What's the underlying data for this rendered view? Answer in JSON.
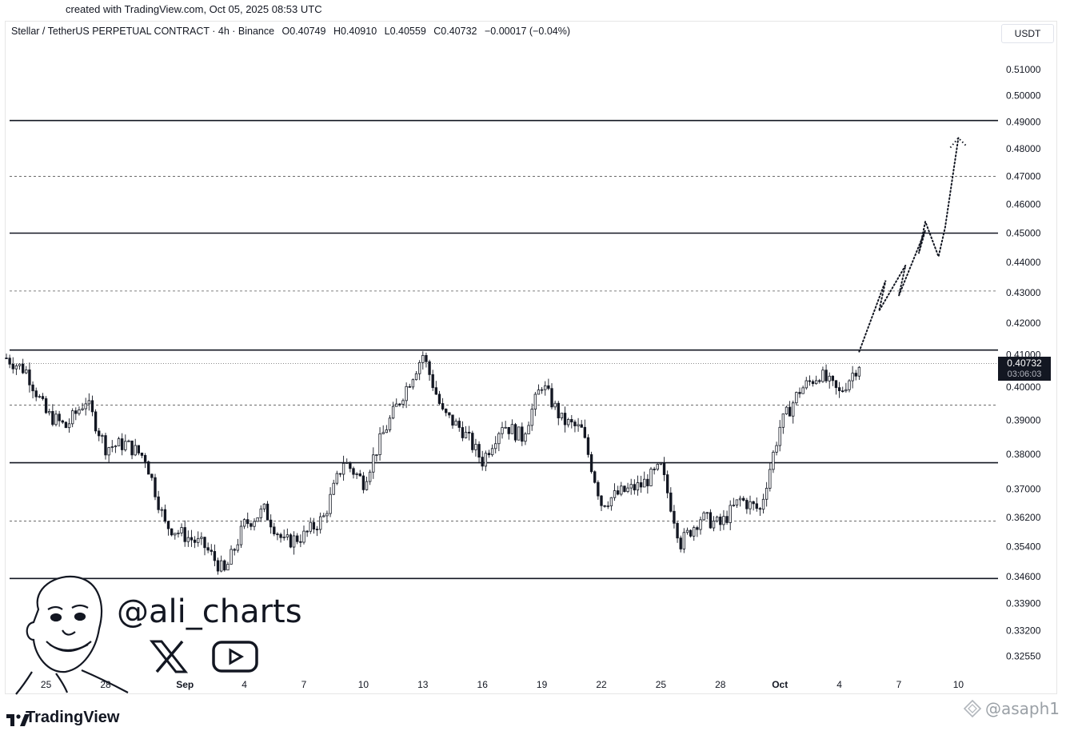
{
  "watermark_top": "created with TradingView.com, Oct 05, 2025 08:53 UTC",
  "header": {
    "symbol": "Stellar / TetherUS PERPETUAL CONTRACT · 4h · Binance",
    "open": "O0.40749",
    "high": "H0.40910",
    "low": "L0.40559",
    "close": "C0.40732",
    "change": "−0.00017 (−0.04%)",
    "unit": "USDT"
  },
  "last_price": {
    "value": "0.40732",
    "countdown": "03:06:03"
  },
  "branding": {
    "logo_text": "TradingView",
    "handle": "@ali_charts",
    "corner_watermark": "@asaph1"
  },
  "icons": [
    "x-logo-icon",
    "youtube-icon",
    "avatar-illustration",
    "tradingview-logo-icon"
  ],
  "colors": {
    "background": "#ffffff",
    "candle_up": "#ffffff",
    "candle_down": "#131722",
    "levels": "#131722"
  },
  "chart_data": {
    "type": "candlestick",
    "interval": "4h",
    "y_axis_ticks": [
      "0.51000",
      "0.50000",
      "0.49000",
      "0.48000",
      "0.47000",
      "0.46000",
      "0.45000",
      "0.44000",
      "0.43000",
      "0.42000",
      "0.41000",
      "0.40000",
      "0.39000",
      "0.38000",
      "0.37000",
      "0.36200",
      "0.35400",
      "0.34600",
      "0.33900",
      "0.33200",
      "0.32550"
    ],
    "y_scale": "log",
    "ylim": [
      0.3205,
      0.5185
    ],
    "x_axis_ticks": [
      {
        "label": "25",
        "date": "2025-08-25"
      },
      {
        "label": "28",
        "date": "2025-08-28"
      },
      {
        "label": "Sep",
        "date": "2025-09-01",
        "bold": true
      },
      {
        "label": "4",
        "date": "2025-09-04"
      },
      {
        "label": "7",
        "date": "2025-09-07"
      },
      {
        "label": "10",
        "date": "2025-09-10"
      },
      {
        "label": "13",
        "date": "2025-09-13"
      },
      {
        "label": "16",
        "date": "2025-09-16"
      },
      {
        "label": "19",
        "date": "2025-09-19"
      },
      {
        "label": "22",
        "date": "2025-09-22"
      },
      {
        "label": "25",
        "date": "2025-09-25"
      },
      {
        "label": "28",
        "date": "2025-09-28"
      },
      {
        "label": "Oct",
        "date": "2025-10-01",
        "bold": true
      },
      {
        "label": "4",
        "date": "2025-10-04"
      },
      {
        "label": "7",
        "date": "2025-10-07"
      },
      {
        "label": "10",
        "date": "2025-10-10"
      }
    ],
    "xlim": [
      "2025-08-23",
      "2025-10-12"
    ],
    "horizontal_levels": [
      {
        "price": 0.4905,
        "style": "solid"
      },
      {
        "price": 0.47,
        "style": "dashed"
      },
      {
        "price": 0.45,
        "style": "solid"
      },
      {
        "price": 0.4305,
        "style": "dashed"
      },
      {
        "price": 0.4115,
        "style": "solid"
      },
      {
        "price": 0.4073,
        "style": "dotted"
      },
      {
        "price": 0.3945,
        "style": "dashed"
      },
      {
        "price": 0.3775,
        "style": "solid"
      },
      {
        "price": 0.361,
        "style": "dashed"
      },
      {
        "price": 0.3455,
        "style": "solid"
      }
    ],
    "close_path": [
      [
        "2025-08-23",
        0.409
      ],
      [
        "2025-08-24",
        0.405
      ],
      [
        "2025-08-25",
        0.392
      ],
      [
        "2025-08-26",
        0.388
      ],
      [
        "2025-08-27",
        0.396
      ],
      [
        "2025-08-28",
        0.382
      ],
      [
        "2025-08-29",
        0.383
      ],
      [
        "2025-08-30",
        0.379
      ],
      [
        "2025-08-31",
        0.36
      ],
      [
        "2025-09-01",
        0.357
      ],
      [
        "2025-09-02",
        0.354
      ],
      [
        "2025-09-03",
        0.347
      ],
      [
        "2025-09-04",
        0.36
      ],
      [
        "2025-09-05",
        0.364
      ],
      [
        "2025-09-06",
        0.355
      ],
      [
        "2025-09-07",
        0.357
      ],
      [
        "2025-09-08",
        0.362
      ],
      [
        "2025-09-09",
        0.378
      ],
      [
        "2025-09-10",
        0.372
      ],
      [
        "2025-09-11",
        0.386
      ],
      [
        "2025-09-12",
        0.398
      ],
      [
        "2025-09-13",
        0.41
      ],
      [
        "2025-09-14",
        0.392
      ],
      [
        "2025-09-15",
        0.387
      ],
      [
        "2025-09-16",
        0.378
      ],
      [
        "2025-09-17",
        0.389
      ],
      [
        "2025-09-18",
        0.385
      ],
      [
        "2025-09-19",
        0.401
      ],
      [
        "2025-09-20",
        0.39
      ],
      [
        "2025-09-21",
        0.387
      ],
      [
        "2025-09-22",
        0.366
      ],
      [
        "2025-09-23",
        0.369
      ],
      [
        "2025-09-24",
        0.371
      ],
      [
        "2025-09-25",
        0.376
      ],
      [
        "2025-09-26",
        0.355
      ],
      [
        "2025-09-27",
        0.362
      ],
      [
        "2025-09-28",
        0.36
      ],
      [
        "2025-09-29",
        0.367
      ],
      [
        "2025-09-30",
        0.364
      ],
      [
        "2025-10-01",
        0.388
      ],
      [
        "2025-10-02",
        0.399
      ],
      [
        "2025-10-03",
        0.404
      ],
      [
        "2025-10-04",
        0.398
      ],
      [
        "2025-10-05",
        0.40732
      ]
    ],
    "projection_path": [
      [
        "2025-10-05",
        0.411
      ],
      [
        "2025-10-06",
        0.434
      ],
      [
        "2025-10-06",
        0.424
      ],
      [
        "2025-10-07",
        0.439
      ],
      [
        "2025-10-07",
        0.429
      ],
      [
        "2025-10-08",
        0.451
      ],
      [
        "2025-10-08",
        0.443
      ],
      [
        "2025-10-08",
        0.454
      ],
      [
        "2025-10-09",
        0.442
      ],
      [
        "2025-10-09",
        0.452
      ],
      [
        "2025-10-10",
        0.484
      ]
    ]
  }
}
